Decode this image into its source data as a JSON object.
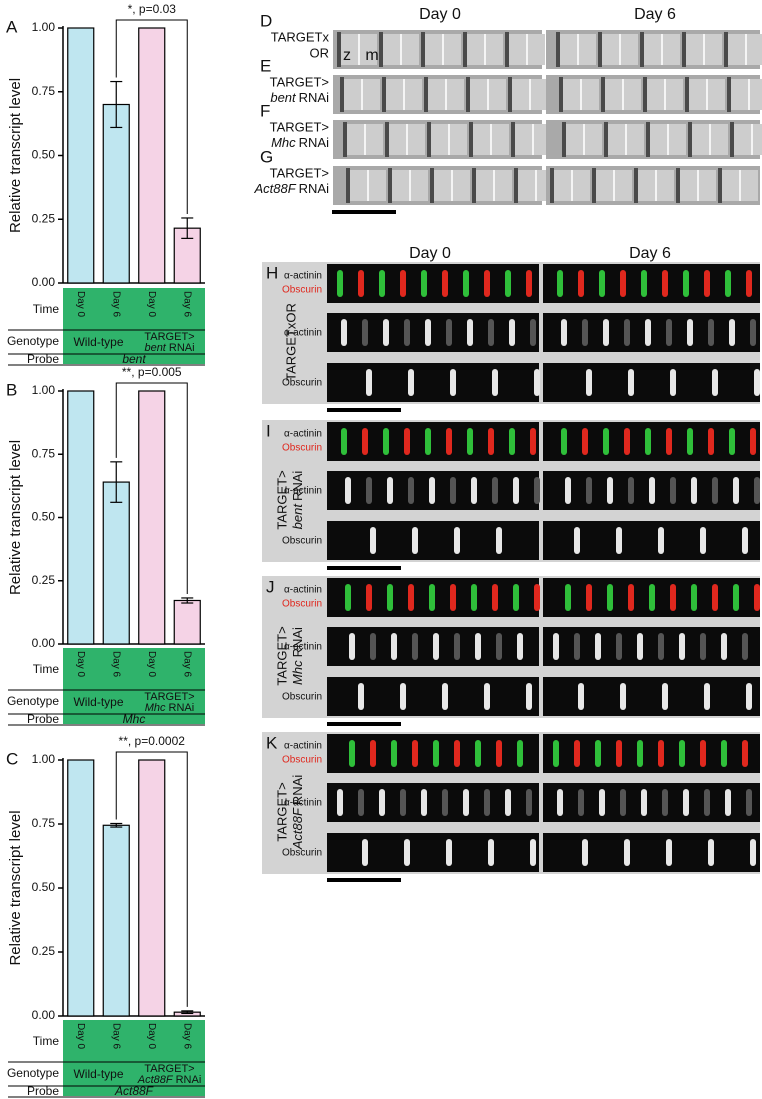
{
  "chart_data": [
    {
      "type": "bar",
      "panel": "A",
      "y_label": "Relative transcript level",
      "annotation": "*, p=0.03",
      "categories": [
        "Day 0",
        "Day 6",
        "Day 0",
        "Day 6"
      ],
      "values": [
        1.0,
        0.7,
        1.0,
        0.215
      ],
      "errors": [
        null,
        0.09,
        null,
        0.04
      ],
      "colors": [
        "#bfe6f0",
        "#bfe6f0",
        "#f5d3e6",
        "#f5d3e6"
      ],
      "ylim": [
        0,
        1
      ],
      "yticks": [
        {
          "value": 0,
          "label": "0.00"
        },
        {
          "value": 0.25,
          "label": "0.25"
        },
        {
          "value": 0.5,
          "label": "0.50"
        },
        {
          "value": 0.75,
          "label": "0.75"
        },
        {
          "value": 1,
          "label": "1.00"
        }
      ],
      "time_label": "Time",
      "genotype_label": "Genotype",
      "probe_label": "Probe",
      "genotypes": [
        "Wild-type",
        "TARGET>"
      ],
      "rnai_gene": "bent",
      "rnai_suffix": "RNAi",
      "probe": "bent"
    },
    {
      "type": "bar",
      "panel": "B",
      "y_label": "Relative transcript level",
      "annotation": "**, p=0.005",
      "categories": [
        "Day 0",
        "Day 6",
        "Day 0",
        "Day 6"
      ],
      "values": [
        1.0,
        0.64,
        1.0,
        0.172
      ],
      "errors": [
        null,
        0.08,
        null,
        0.01
      ],
      "colors": [
        "#bfe6f0",
        "#bfe6f0",
        "#f5d3e6",
        "#f5d3e6"
      ],
      "ylim": [
        0,
        1
      ],
      "yticks": [
        {
          "value": 0,
          "label": "0.00"
        },
        {
          "value": 0.25,
          "label": "0.25"
        },
        {
          "value": 0.5,
          "label": "0.50"
        },
        {
          "value": 0.75,
          "label": "0.75"
        },
        {
          "value": 1,
          "label": "1.00"
        }
      ],
      "time_label": "Time",
      "genotype_label": "Genotype",
      "probe_label": "Probe",
      "genotypes": [
        "Wild-type",
        "TARGET>"
      ],
      "rnai_gene": "Mhc",
      "rnai_suffix": "RNAi",
      "probe": "Mhc"
    },
    {
      "type": "bar",
      "panel": "C",
      "y_label": "Relative transcript level",
      "annotation": "**, p=0.0002",
      "categories": [
        "Day 0",
        "Day 6",
        "Day 0",
        "Day 6"
      ],
      "values": [
        1.0,
        0.745,
        1.0,
        0.015
      ],
      "errors": [
        null,
        0.007,
        null,
        0.005
      ],
      "colors": [
        "#bfe6f0",
        "#bfe6f0",
        "#f5d3e6",
        "#f5d3e6"
      ],
      "ylim": [
        0,
        1
      ],
      "yticks": [
        {
          "value": 0,
          "label": "0.00"
        },
        {
          "value": 0.25,
          "label": "0.25"
        },
        {
          "value": 0.5,
          "label": "0.50"
        },
        {
          "value": 0.75,
          "label": "0.75"
        },
        {
          "value": 1,
          "label": "1.00"
        }
      ],
      "time_label": "Time",
      "genotype_label": "Genotype",
      "probe_label": "Probe",
      "genotypes": [
        "Wild-type",
        "TARGET>"
      ],
      "rnai_gene": "Act88F",
      "rnai_suffix": "RNAi",
      "probe": "Act88F"
    }
  ],
  "images_top": {
    "headers": [
      "Day 0",
      "Day 6"
    ],
    "markers": [
      "z",
      "m"
    ],
    "panels": [
      {
        "letter": "D",
        "line1": "TARGETx",
        "line2": "OR"
      },
      {
        "letter": "E",
        "line1": "TARGET>",
        "italic": "bent",
        "rest": "RNAi"
      },
      {
        "letter": "F",
        "line1": "TARGET>",
        "italic": "Mhc",
        "rest": "RNAi"
      },
      {
        "letter": "G",
        "line1": "TARGET>",
        "italic": "Act88F",
        "rest": "RNAi"
      }
    ]
  },
  "images_bottom": {
    "headers": [
      "Day 0",
      "Day 6"
    ],
    "panels": [
      {
        "letter": "H",
        "line1": "TARGETxOR",
        "channels": [
          "α-actinin",
          "Obscurin",
          "α-actinin",
          "Obscurin"
        ]
      },
      {
        "letter": "I",
        "line1": "TARGET>",
        "italic": "bent",
        "rest": "RNAi",
        "channels": [
          "α-actinin",
          "Obscurin",
          "α-actinin",
          "Obscurin"
        ]
      },
      {
        "letter": "J",
        "line1": "TARGET>",
        "italic": "Mhc",
        "rest": "RNAi",
        "channels": [
          "α-actinin",
          "Obscurin",
          "α-actinin",
          "Obscurin"
        ]
      },
      {
        "letter": "K",
        "line1": "TARGET>",
        "italic": "Act88F",
        "rest": "RNAi",
        "channels": [
          "α-actinin",
          "Obscurin",
          "α-actinin",
          "Obscurin"
        ]
      }
    ]
  }
}
